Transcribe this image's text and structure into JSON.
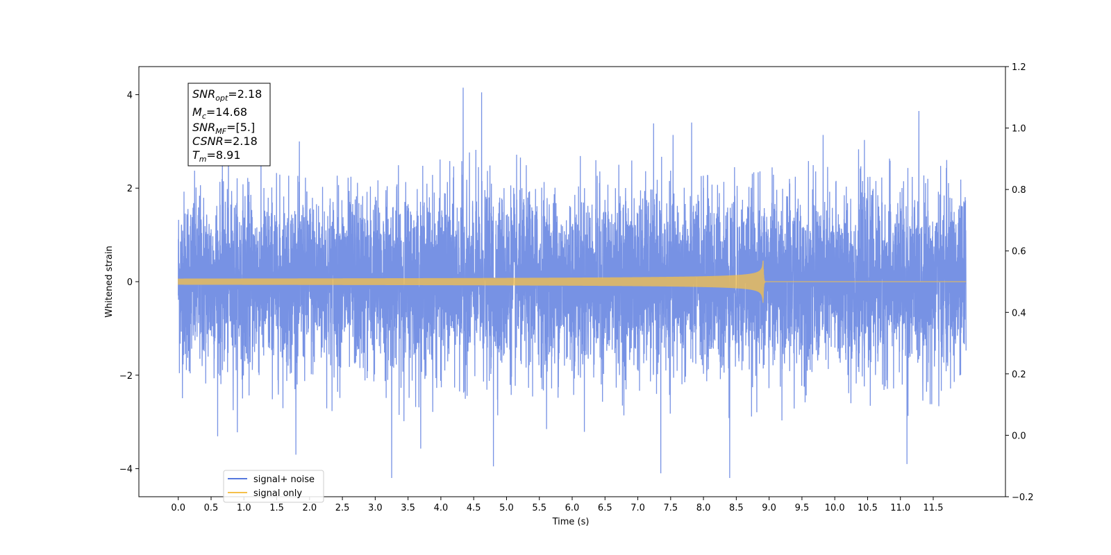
{
  "chart_data": {
    "type": "line",
    "xlabel": "Time (s)",
    "ylabel": "Whitened strain",
    "xlim": [
      -0.6,
      12.6
    ],
    "ylim": [
      -4.6,
      4.6
    ],
    "y2lim": [
      -0.2,
      1.2
    ],
    "x_ticks": [
      "0.0",
      "0.5",
      "1.0",
      "1.5",
      "2.0",
      "2.5",
      "3.0",
      "3.5",
      "4.0",
      "4.5",
      "5.0",
      "5.5",
      "6.0",
      "6.5",
      "7.0",
      "7.5",
      "8.0",
      "8.5",
      "9.0",
      "9.5",
      "10.0",
      "10.5",
      "11.0",
      "11.5"
    ],
    "y_ticks": [
      "4",
      "2",
      "0",
      "−2",
      "−4"
    ],
    "y2_ticks": [
      "1.2",
      "1.0",
      "0.8",
      "0.6",
      "0.4",
      "0.2",
      "0.0",
      "−0.2"
    ],
    "grid": false,
    "legend_position": "lower-left",
    "series": [
      {
        "name": "signal+ noise",
        "color": "#5577dd",
        "x_range": [
          0.0,
          12.0
        ],
        "noise_std": 0.95,
        "y_range": [
          -4.2,
          4.15
        ],
        "notable_peaks": [
          {
            "x": 4.34,
            "y": 4.15
          },
          {
            "x": 4.62,
            "y": 4.05
          },
          {
            "x": 3.25,
            "y": -4.2
          },
          {
            "x": 8.4,
            "y": -4.2
          },
          {
            "x": 7.35,
            "y": -4.1
          },
          {
            "x": 4.8,
            "y": -3.95
          },
          {
            "x": 11.1,
            "y": -3.9
          }
        ]
      },
      {
        "name": "signal only",
        "color": "#f5c04a",
        "type": "chirp",
        "merger_time": 8.91,
        "peak_amplitude": 0.45
      }
    ]
  },
  "info_box": {
    "line1_main": "SNR",
    "line1_sub": "opt",
    "line1_val": "=2.18",
    "line2_main": "M",
    "line2_sub": "c",
    "line2_val": "=14.68",
    "line3_main": "SNR",
    "line3_sub": "MF",
    "line3_val": "=[5.]",
    "line4_main": "CSNR",
    "line4_val": "=2.18",
    "line5_main": "T",
    "line5_sub": "m",
    "line5_val": "=8.91"
  }
}
